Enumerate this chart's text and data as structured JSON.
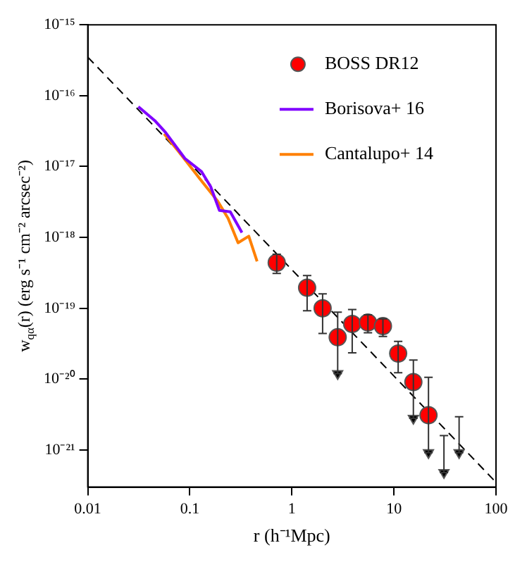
{
  "chart_data": {
    "type": "scatter",
    "xlabel": "r (h⁻¹Mpc)",
    "ylabel": "w$_{qα}$(r) (erg s⁻¹ cm⁻² arcsec⁻²)",
    "log": "xy",
    "grid": false,
    "legend": "top right",
    "xlim": [
      0.01,
      100
    ],
    "xticks": [
      0.01,
      0.1,
      1,
      10,
      100
    ],
    "ylim": [
      3e-22,
      1e-15
    ],
    "yticks": [
      {
        "value": 1e-21,
        "label": "10⁻²¹"
      },
      {
        "value": 1e-20,
        "label": "10⁻²⁰"
      },
      {
        "value": 1e-19,
        "label": "10⁻¹⁹"
      },
      {
        "value": 1e-18,
        "label": "10⁻¹⁸"
      },
      {
        "value": 1e-17,
        "label": "10⁻¹⁷"
      },
      {
        "value": 1e-16,
        "label": "10⁻¹⁶"
      },
      {
        "value": 1e-15,
        "label": "10⁻¹⁵"
      }
    ],
    "series": [
      {
        "name": "BOSS DR12",
        "color": "#ff0000",
        "marker": "circle",
        "x": [
          0.71,
          1.41,
          2.0,
          2.81,
          3.9,
          5.56,
          7.8,
          11.0,
          15.5,
          21.8
        ],
        "values": [
          4.4e-19,
          1.95e-19,
          1e-19,
          3.9e-20,
          6e-20,
          6.3e-20,
          5.6e-20,
          2.3e-20,
          9.1e-21,
          3.1e-21
        ],
        "errors": [
          [
            3.1e-19,
            5.8e-19
          ],
          [
            9.2e-20,
            2.9e-19
          ],
          [
            4.4e-20,
            1.6e-19
          ],
          [
            1.2e-20,
            8.8e-20
          ],
          [
            2.35e-20,
            9.6e-20
          ],
          [
            4.5e-20,
            8.1e-20
          ],
          [
            4e-20,
            7.1e-20
          ],
          [
            1.23e-20,
            3.4e-20
          ],
          [
            2.8e-21,
            1.86e-20
          ],
          [
            9.2e-22,
            1.06e-20
          ]
        ]
      },
      {
        "color": "#000000",
        "marker": "triangle",
        "x": [
          2.81,
          15.5,
          21.8,
          30.9,
          43.5
        ],
        "values": [
          1.2e-20,
          2.8e-21,
          9.2e-22,
          4.8e-22,
          9.2e-22
        ],
        "errors": [
          null,
          null,
          null,
          [
            4.8e-22,
            1.6e-21
          ],
          [
            9.2e-22,
            2.95e-21
          ]
        ]
      },
      {
        "name": "Borisova+ 16",
        "type": "line",
        "color": "#8000ff",
        "marker": "none",
        "x": [
          0.0313,
          0.0453,
          0.0577,
          0.0895,
          0.13,
          0.16,
          0.195,
          0.249,
          0.324
        ],
        "values": [
          7e-17,
          4.45e-17,
          3.04e-17,
          1.3e-17,
          8.5e-18,
          5.2e-18,
          2.4e-18,
          2.3e-18,
          1.17e-18
        ]
      },
      {
        "name": "Cantalupo+ 14",
        "type": "line",
        "color": "#ff8000",
        "marker": "none",
        "x": [
          0.056,
          0.077,
          0.132,
          0.186,
          0.237,
          0.297,
          0.378,
          0.456
        ],
        "values": [
          2.9e-17,
          1.65e-17,
          6.1e-18,
          3.3e-18,
          1.86e-18,
          8.4e-19,
          1.04e-18,
          4.6e-19
        ]
      },
      {
        "type": "line",
        "color": "#000000",
        "marker": "none",
        "line_style": "dashed",
        "x": [
          0.01,
          100
        ],
        "values": [
          3.5e-16,
          3.5e-22
        ]
      }
    ]
  }
}
